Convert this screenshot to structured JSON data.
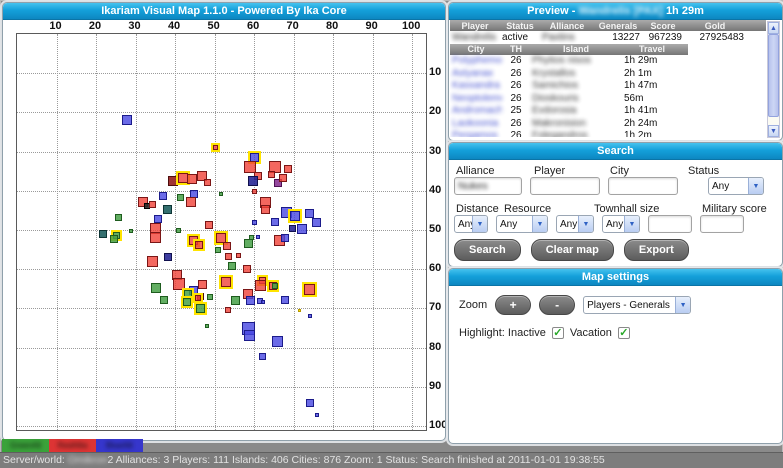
{
  "left_panel": {
    "title": "Ikariam Visual Map 1.1.0 - Powered By Ika Core"
  },
  "preview": {
    "header_prefix": "Preview -",
    "player_redacted": "Wandrelis",
    "tag_redacted": "[PAX]",
    "travel": "1h 29m",
    "player_table": {
      "headers": [
        "Player",
        "Status",
        "Alliance",
        "Generals",
        "Score",
        "Gold"
      ],
      "row": {
        "player_redacted": "Wandrelis",
        "status": "active",
        "alliance_redacted": "Paxtins",
        "generals": "13227",
        "score": "967239",
        "gold": "27925483"
      }
    },
    "city_table": {
      "headers": [
        "City",
        "TH",
        "Island",
        "Travel"
      ],
      "rows": [
        {
          "city_redacted": "Polyphemos",
          "th": "26",
          "island_redacted": "Phytios nisos",
          "travel": "1h 29m"
        },
        {
          "city_redacted": "Astyanax",
          "th": "26",
          "island_redacted": "Krystallos",
          "travel": "2h 1m"
        },
        {
          "city_redacted": "Kassandra",
          "th": "26",
          "island_redacted": "Samichios",
          "travel": "1h 47m"
        },
        {
          "city_redacted": "Neoptolemo",
          "th": "26",
          "island_redacted": "Dioskouris",
          "travel": "56m"
        },
        {
          "city_redacted": "Andromache",
          "th": "25",
          "island_redacted": "Evdorosia",
          "travel": "1h 41m"
        },
        {
          "city_redacted": "Laokoonia",
          "th": "26",
          "island_redacted": "Makronision",
          "travel": "2h 24m"
        },
        {
          "city_redacted": "Pergamos",
          "th": "26",
          "island_redacted": "Folegandros",
          "travel": "1h 2m"
        }
      ]
    },
    "scrollbar": {
      "up": "▲",
      "down": "▼"
    }
  },
  "search": {
    "header": "Search",
    "alliance_label": "Alliance",
    "player_label": "Player",
    "city_label": "City",
    "status_label": "Status",
    "alliance_value_redacted": "Nukes",
    "player_value": "",
    "city_value": "",
    "status_value": "Any",
    "distance_label": "Distance",
    "resource_label": "Resource",
    "townhall_label": "Townhall size",
    "military_label": "Military score",
    "distance_value": "Any",
    "resource_value": "Any",
    "townhall_min_value": "Any",
    "townhall_max_value": "Any",
    "military_min": "",
    "military_max": "",
    "search_button": "Search",
    "clear_button": "Clear map",
    "export_button": "Export",
    "dropdown_glyph": "▼"
  },
  "map_settings": {
    "header": "Map settings",
    "zoom_label": "Zoom",
    "zoom_in": "+",
    "zoom_out": "-",
    "display_mode": "Players - Generals",
    "highlight_label": "Highlight: Inactive",
    "vacation_label": "Vacation",
    "inactive_checked": true,
    "vacation_checked": true,
    "check_glyph": "✓",
    "dropdown_glyph": "▼"
  },
  "legend": {
    "items": [
      {
        "name_redacted": "GreenAll",
        "color": "#3aa23a"
      },
      {
        "name_redacted": "RedAllia",
        "color": "#dd3434"
      },
      {
        "name_redacted": "BlueAlli",
        "color": "#3636cc"
      }
    ]
  },
  "status_bar": {
    "prefix": "Server/world: ",
    "world_redacted": "Omikron",
    "suffix": "2 Alliances: 3 Players: 111 Islands: 406 Cities: 876 Zoom: 1 Status: Search finished at 2011-01-01 19:38:55"
  },
  "chart_data": {
    "type": "scatter",
    "title": "Ikariam Visual Map 1.1.0 - Powered By Ika Core",
    "xlabel": "",
    "ylabel": "",
    "xlim": [
      0,
      103.5
    ],
    "ylim": [
      0,
      101
    ],
    "y_inverted": true,
    "grid": true,
    "x_ticks": [
      10,
      20,
      30,
      40,
      50,
      60,
      70,
      80,
      90,
      100
    ],
    "y_ticks": [
      10,
      20,
      30,
      40,
      50,
      60,
      70,
      80,
      90,
      100
    ],
    "legend_note": "square markers = cities, color = alliance, size = generals score, yellow ring = inactive/vacation highlight",
    "colors": {
      "red": {
        "fill": "rgba(240,65,55,0.8)",
        "border": "#7a1616"
      },
      "blue": {
        "fill": "rgba(70,70,225,0.8)",
        "border": "#1b1b8a"
      },
      "green": {
        "fill": "rgba(70,160,70,0.85)",
        "border": "#1e5c1e"
      },
      "navy": {
        "fill": "rgba(40,40,150,0.9)",
        "border": "#10104d"
      },
      "purple": {
        "fill": "rgba(130,40,140,0.85)",
        "border": "#4d1054"
      },
      "teal": {
        "fill": "rgba(30,95,95,0.9)",
        "border": "#0d3434"
      },
      "maroon": {
        "fill": "rgba(150,30,30,0.9)",
        "border": "#4d0d0d"
      },
      "black": {
        "fill": "rgba(40,40,40,0.9)",
        "border": "#000000"
      },
      "yellow": {
        "fill": "#ffe000",
        "border": "#b89a00"
      }
    },
    "points": [
      [
        27.8,
        22,
        10,
        "blue",
        0
      ],
      [
        50.2,
        29,
        5,
        "red",
        1
      ],
      [
        60.2,
        31.5,
        9,
        "blue",
        1
      ],
      [
        59,
        34,
        12,
        "red",
        0
      ],
      [
        65.3,
        34,
        12,
        "red",
        0
      ],
      [
        68.6,
        34.5,
        8,
        "red",
        0
      ],
      [
        61,
        36.3,
        8,
        "red",
        0
      ],
      [
        59.7,
        37.6,
        10,
        "navy",
        0
      ],
      [
        64.5,
        35.8,
        7,
        "red",
        0
      ],
      [
        66,
        37.9,
        8,
        "purple",
        0
      ],
      [
        67.3,
        36.6,
        8,
        "red",
        0
      ],
      [
        39.4,
        37.6,
        10,
        "maroon",
        0
      ],
      [
        41.9,
        36.6,
        10,
        "red",
        1
      ],
      [
        44.4,
        37.1,
        10,
        "red",
        0
      ],
      [
        46.9,
        36.3,
        10,
        "red",
        0
      ],
      [
        48.2,
        37.9,
        7,
        "red",
        0
      ],
      [
        36.9,
        41.4,
        8,
        "blue",
        0
      ],
      [
        44.7,
        40.9,
        8,
        "blue",
        0
      ],
      [
        51.5,
        40.9,
        4,
        "green",
        0
      ],
      [
        60.2,
        40.1,
        5,
        "red",
        0
      ],
      [
        41.4,
        41.6,
        7,
        "green",
        0
      ],
      [
        44,
        42.9,
        10,
        "red",
        0
      ],
      [
        31.9,
        42.9,
        10,
        "red",
        0
      ],
      [
        32.8,
        43.8,
        6,
        "black",
        0
      ],
      [
        34.4,
        43.4,
        7,
        "red",
        0
      ],
      [
        62.8,
        42.9,
        11,
        "red",
        0
      ],
      [
        62.8,
        44.7,
        9,
        "red",
        0
      ],
      [
        38.1,
        44.7,
        9,
        "teal",
        0
      ],
      [
        25.8,
        46.7,
        7,
        "green",
        0
      ],
      [
        35.6,
        47.2,
        8,
        "blue",
        0
      ],
      [
        68.3,
        45.4,
        11,
        "blue",
        0
      ],
      [
        70.3,
        46.4,
        10,
        "blue",
        1
      ],
      [
        74.1,
        45.9,
        9,
        "blue",
        0
      ],
      [
        65.3,
        48,
        8,
        "blue",
        0
      ],
      [
        75.9,
        48,
        9,
        "blue",
        0
      ],
      [
        69.8,
        49.7,
        7,
        "navy",
        0
      ],
      [
        72.1,
        49.7,
        10,
        "blue",
        0
      ],
      [
        60.2,
        48.2,
        5,
        "blue",
        0
      ],
      [
        28.8,
        50.2,
        4,
        "green",
        0
      ],
      [
        21.8,
        51,
        8,
        "teal",
        0
      ],
      [
        25.1,
        51.3,
        7,
        "green",
        1
      ],
      [
        24.6,
        52.4,
        8,
        "green",
        0
      ],
      [
        40.9,
        50.2,
        5,
        "green",
        0
      ],
      [
        35.1,
        49.7,
        11,
        "red",
        0
      ],
      [
        35.1,
        51.8,
        11,
        "red",
        0
      ],
      [
        48.5,
        48.8,
        8,
        "red",
        0
      ],
      [
        44.7,
        52.7,
        9,
        "red",
        1
      ],
      [
        46,
        53.7,
        8,
        "red",
        1
      ],
      [
        51.5,
        52,
        10,
        "red",
        1
      ],
      [
        53.2,
        54,
        8,
        "red",
        0
      ],
      [
        50.8,
        55.2,
        6,
        "green",
        0
      ],
      [
        58.5,
        53.5,
        9,
        "green",
        0
      ],
      [
        66.5,
        52.7,
        11,
        "red",
        0
      ],
      [
        67.8,
        52,
        8,
        "blue",
        0
      ],
      [
        59.4,
        51.8,
        5,
        "green",
        0
      ],
      [
        61,
        51.8,
        4,
        "blue",
        0
      ],
      [
        56,
        56.5,
        5,
        "red",
        0
      ],
      [
        53.5,
        56.8,
        7,
        "red",
        0
      ],
      [
        38.1,
        56.8,
        8,
        "navy",
        0
      ],
      [
        34.4,
        58,
        11,
        "red",
        0
      ],
      [
        54.5,
        59.1,
        8,
        "green",
        0
      ],
      [
        58.2,
        59.9,
        8,
        "red",
        0
      ],
      [
        40.6,
        61.4,
        10,
        "red",
        0
      ],
      [
        41.1,
        63.7,
        12,
        "red",
        0
      ],
      [
        35.1,
        64.9,
        10,
        "green",
        0
      ],
      [
        44.7,
        65.4,
        9,
        "blue",
        0
      ],
      [
        47,
        64,
        9,
        "red",
        0
      ],
      [
        52.8,
        63.2,
        10,
        "red",
        1
      ],
      [
        62,
        62.9,
        7,
        "red",
        1
      ],
      [
        61.5,
        64.2,
        11,
        "red",
        0
      ],
      [
        64.8,
        64.4,
        8,
        "red",
        1
      ],
      [
        74.1,
        65.2,
        11,
        "red",
        1
      ],
      [
        58.5,
        66.2,
        10,
        "red",
        0
      ],
      [
        65.3,
        64.4,
        6,
        "green",
        0
      ],
      [
        43.2,
        66.2,
        8,
        "green",
        1
      ],
      [
        46.4,
        66.9,
        7,
        "maroon",
        0
      ],
      [
        48.9,
        67,
        6,
        "green",
        0
      ],
      [
        45.9,
        67.3,
        6,
        "red",
        1
      ],
      [
        37.1,
        67.9,
        8,
        "green",
        0
      ],
      [
        43,
        68.4,
        8,
        "green",
        1
      ],
      [
        46.4,
        70,
        9,
        "green",
        1
      ],
      [
        55.2,
        67.9,
        9,
        "green",
        0
      ],
      [
        59,
        67.9,
        9,
        "blue",
        0
      ],
      [
        61.5,
        68.1,
        6,
        "blue",
        0
      ],
      [
        62.3,
        68.4,
        4,
        "blue",
        0
      ],
      [
        67.8,
        67.9,
        8,
        "blue",
        0
      ],
      [
        53.5,
        70.5,
        6,
        "red",
        0
      ],
      [
        71.4,
        70.5,
        3,
        "yellow",
        0
      ],
      [
        74.1,
        72,
        4,
        "blue",
        0
      ],
      [
        48.2,
        74.5,
        4,
        "green",
        0
      ],
      [
        58.5,
        75.2,
        13,
        "blue",
        0
      ],
      [
        58.8,
        76.8,
        11,
        "blue",
        0
      ],
      [
        65.8,
        78.4,
        11,
        "blue",
        0
      ],
      [
        62,
        82.2,
        7,
        "blue",
        0
      ],
      [
        74.1,
        94.1,
        8,
        "blue",
        0
      ],
      [
        75.9,
        97.1,
        4,
        "blue",
        0
      ]
    ]
  }
}
